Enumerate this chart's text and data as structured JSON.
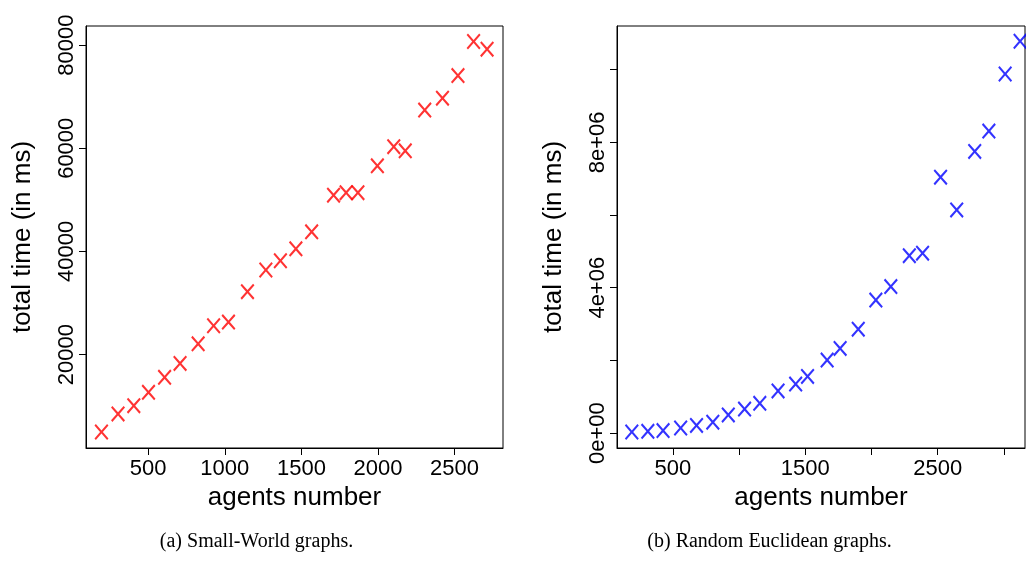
{
  "chart_data": [
    {
      "type": "scatter",
      "xlabel": "agents number",
      "ylabel": "total time (in ms)",
      "annotations": [
        "(a) Small-World graphs."
      ],
      "marker": "cross",
      "x": [
        195,
        303,
        406,
        502,
        607,
        708,
        826,
        927,
        1024,
        1148,
        1268,
        1363,
        1464,
        1567,
        1710,
        1792,
        1869,
        1996,
        2103,
        2178,
        2305,
        2421,
        2522,
        2624,
        2712
      ],
      "series": [
        {
          "color": "#ff0000",
          "values": [
            5000,
            8500,
            10100,
            12700,
            15600,
            18300,
            22100,
            25600,
            26300,
            32200,
            36400,
            38200,
            40500,
            43800,
            50900,
            51400,
            51400,
            56600,
            60300,
            59500,
            67400,
            69700,
            74100,
            80700,
            79200
          ]
        }
      ],
      "xlim": [
        94,
        2816
      ],
      "xticks": [
        500,
        1000,
        1500,
        2000,
        2500
      ],
      "ylim": [
        1900,
        83700
      ],
      "yticks": [
        20000,
        40000,
        60000,
        80000
      ]
    },
    {
      "type": "scatter",
      "xlabel": "agents number",
      "ylabel": "total time (in ms)",
      "annotations": [
        "(b) Random Euclidean graphs."
      ],
      "marker": "cross",
      "x": [
        189,
        310,
        425,
        558,
        678,
        801,
        918,
        1041,
        1156,
        1294,
        1427,
        1517,
        1665,
        1763,
        1900,
        2033,
        2146,
        2286,
        2386,
        2522,
        2644,
        2780,
        2887,
        3010,
        3123
      ],
      "series": [
        {
          "color": "#0000ff",
          "values": [
            30000,
            50000,
            70000,
            140000,
            210000,
            300000,
            500000,
            660000,
            820000,
            1160000,
            1350000,
            1560000,
            2010000,
            2330000,
            2860000,
            3660000,
            4030000,
            4880000,
            4950000,
            7040000,
            6140000,
            7750000,
            8310000,
            9880000,
            10780000
          ]
        }
      ],
      "xlim": [
        77,
        3160
      ],
      "xticks": [
        500,
        {
          "value": 1000,
          "label": null
        },
        1500,
        {
          "value": 2000,
          "label": null
        },
        2500,
        {
          "value": 3000,
          "label": null
        }
      ],
      "ylim": [
        -410000,
        11200000
      ],
      "yticks": [
        {
          "value": 0,
          "label": "0e+00"
        },
        {
          "value": 2000000,
          "label": null
        },
        {
          "value": 4000000,
          "label": "4e+06"
        },
        {
          "value": 6000000,
          "label": null
        },
        {
          "value": 8000000,
          "label": "8e+06"
        },
        {
          "value": 10000000,
          "label": null
        }
      ]
    }
  ]
}
